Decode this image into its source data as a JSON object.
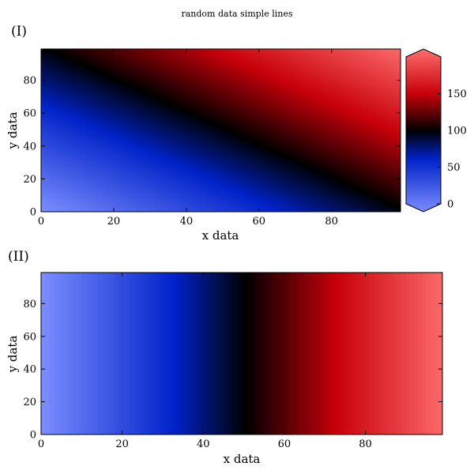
{
  "figure": {
    "title": "random data simple lines"
  },
  "colormap": {
    "name": "seismic-like",
    "stops": [
      {
        "value": 0,
        "color": "#7a8cff"
      },
      {
        "value": 65,
        "color": "#0022c8"
      },
      {
        "value": 100,
        "color": "#000000"
      },
      {
        "value": 145,
        "color": "#c8000a"
      },
      {
        "value": 200,
        "color": "#ff6e6e"
      }
    ]
  },
  "chart_data": [
    {
      "type": "heatmap",
      "panel_label": "(I)",
      "xlabel": "x data",
      "ylabel": "y data",
      "xlim": [
        0,
        99
      ],
      "ylim": [
        0,
        99
      ],
      "xticks": [
        0,
        20,
        40,
        60,
        80
      ],
      "yticks": [
        0,
        20,
        40,
        60,
        80
      ],
      "function": "z = x + y",
      "value_range": [
        0,
        198
      ],
      "colorbar": {
        "ticks": [
          0,
          50,
          100,
          150
        ],
        "extend": "both",
        "position": "right"
      }
    },
    {
      "type": "heatmap",
      "panel_label": "(II)",
      "xlabel": "x data",
      "ylabel": "y data",
      "xlim": [
        0,
        99
      ],
      "ylim": [
        0,
        99
      ],
      "xticks": [
        0,
        20,
        40,
        60,
        80
      ],
      "yticks": [
        0,
        20,
        40,
        60,
        80
      ],
      "function": "z = 2x",
      "value_range": [
        0,
        198
      ]
    }
  ]
}
